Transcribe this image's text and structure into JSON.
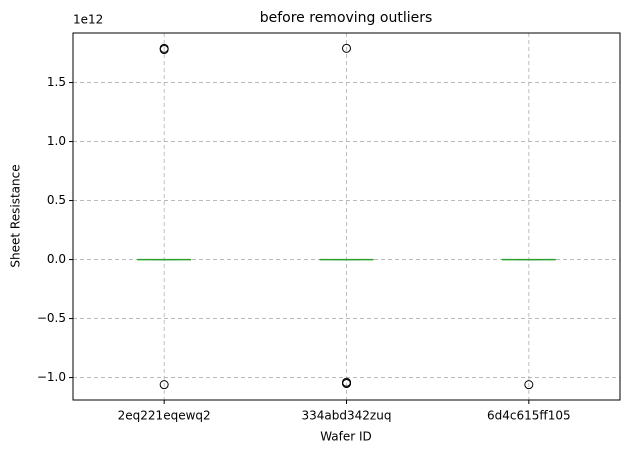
{
  "chart_data": {
    "type": "boxplot",
    "title": "before removing outliers",
    "x_label": "Wafer ID",
    "y_label": "Sheet Resistance",
    "offset_label": "1e12",
    "categories": [
      "2eq221eqewq2",
      "334abd342zuq",
      "6d4c615ff105"
    ],
    "boxes": [
      {
        "whislo": 0,
        "q1": 0,
        "med": 0,
        "q3": 0,
        "whishi": 0,
        "fliers": [
          1.78,
          1.79,
          -1.06
        ]
      },
      {
        "whislo": 0,
        "q1": 0,
        "med": 0,
        "q3": 0,
        "whishi": 0,
        "fliers": [
          1.79,
          -1.04,
          -1.05,
          -1.05
        ]
      },
      {
        "whislo": 0,
        "q1": 0,
        "med": 0,
        "q3": 0,
        "whishi": 0,
        "fliers": [
          -1.06
        ]
      }
    ],
    "box_color": "#1f77b4",
    "median_color": "#2ca02c",
    "flier_color": "#000000",
    "ylim": [
      -1.19,
      1.92
    ],
    "yticks": [
      {
        "value": -1,
        "label": "−1.0"
      },
      {
        "value": -0.5,
        "label": "−0.5"
      },
      {
        "value": 0,
        "label": "0.0"
      },
      0.5,
      {
        "value": 1,
        "label": "1.0"
      },
      1.5
    ],
    "grid": true
  }
}
